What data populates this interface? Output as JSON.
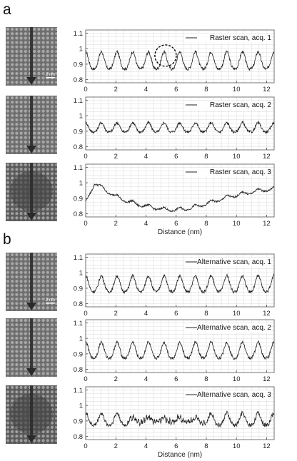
{
  "panels": {
    "a": "a",
    "b": "b"
  },
  "scale_bar_label": "2 nm",
  "colors": {
    "line": "#222222",
    "grid": "#d9d9d9",
    "circle": "#000000",
    "arrow": "#2a2a2a"
  },
  "chart_data": [
    {
      "type": "line",
      "legend": "Raster scan, acq. 1",
      "xlim": [
        0,
        12.5
      ],
      "ylim": [
        0.78,
        1.12
      ],
      "xticks": [
        "0",
        "2",
        "4",
        "6",
        "8",
        "10",
        "12"
      ],
      "yticks": [
        "0.8",
        "0.9",
        "1",
        "1.1"
      ],
      "xlabel": "",
      "grid": true,
      "profile": {
        "baseline": 0.915,
        "amplitude": 0.065,
        "period_nm": 1.04,
        "noise": 0.01,
        "drift": []
      },
      "annotation": {
        "shape": "dashed-circle",
        "x": 5.3,
        "y": 0.955
      }
    },
    {
      "type": "line",
      "legend": "Raster scan, acq. 2",
      "xlim": [
        0,
        12.5
      ],
      "ylim": [
        0.78,
        1.12
      ],
      "xticks": [
        "0",
        "2",
        "4",
        "6",
        "8",
        "10",
        "12"
      ],
      "yticks": [
        "0.8",
        "0.9",
        "1",
        "1.1"
      ],
      "xlabel": "",
      "grid": true,
      "profile": {
        "baseline": 0.92,
        "amplitude": 0.035,
        "period_nm": 1.04,
        "noise": 0.009,
        "drift": []
      }
    },
    {
      "type": "line",
      "legend": "Raster scan, acq. 3",
      "xlim": [
        0,
        12.5
      ],
      "ylim": [
        0.78,
        1.12
      ],
      "xticks": [
        "0",
        "2",
        "4",
        "6",
        "8",
        "10",
        "12"
      ],
      "yticks": [
        "0.8",
        "0.9",
        "1",
        "1.1"
      ],
      "xlabel": "Distance (nm)",
      "grid": true,
      "profile": {
        "baseline": 0,
        "amplitude": 0.012,
        "period_nm": 1.04,
        "noise": 0.006,
        "drift": [
          [
            0,
            0.87
          ],
          [
            0.6,
            1.0
          ],
          [
            1.5,
            0.94
          ],
          [
            2.5,
            0.89
          ],
          [
            3.5,
            0.86
          ],
          [
            4.5,
            0.84
          ],
          [
            5.5,
            0.825
          ],
          [
            6.5,
            0.83
          ],
          [
            7.5,
            0.85
          ],
          [
            8.5,
            0.88
          ],
          [
            9.5,
            0.91
          ],
          [
            10.5,
            0.93
          ],
          [
            11.5,
            0.95
          ],
          [
            12.5,
            0.96
          ]
        ]
      }
    },
    {
      "type": "line",
      "legend": "Alternative scan, acq. 1",
      "xlim": [
        0,
        12.5
      ],
      "ylim": [
        0.78,
        1.12
      ],
      "xticks": [
        "0",
        "2",
        "4",
        "6",
        "8",
        "10",
        "12"
      ],
      "yticks": [
        "0.8",
        "0.9",
        "1",
        "1.1"
      ],
      "xlabel": "",
      "grid": true,
      "profile": {
        "baseline": 0.92,
        "amplitude": 0.06,
        "period_nm": 1.04,
        "noise": 0.01,
        "drift": []
      }
    },
    {
      "type": "line",
      "legend": "Alternative scan, acq. 2",
      "xlim": [
        0,
        12.5
      ],
      "ylim": [
        0.78,
        1.12
      ],
      "xticks": [
        "0",
        "2",
        "4",
        "6",
        "8",
        "10",
        "12"
      ],
      "yticks": [
        "0.8",
        "0.9",
        "1",
        "1.1"
      ],
      "xlabel": "",
      "grid": true,
      "profile": {
        "baseline": 0.915,
        "amplitude": 0.06,
        "period_nm": 1.04,
        "noise": 0.01,
        "drift": []
      }
    },
    {
      "type": "line",
      "legend": "Alternative scan, acq. 3",
      "xlim": [
        0,
        12.5
      ],
      "ylim": [
        0.78,
        1.12
      ],
      "xticks": [
        "0",
        "2",
        "4",
        "6",
        "8",
        "10",
        "12"
      ],
      "yticks": [
        "0.8",
        "0.9",
        "1",
        "1.1"
      ],
      "xlabel": "Distance (nm)",
      "grid": true,
      "profile": {
        "baseline": 0.905,
        "amplitude": 0.045,
        "period_nm": 1.04,
        "noise": 0.014,
        "drift": [],
        "damped_region": [
          3.0,
          8.0
        ]
      }
    }
  ]
}
